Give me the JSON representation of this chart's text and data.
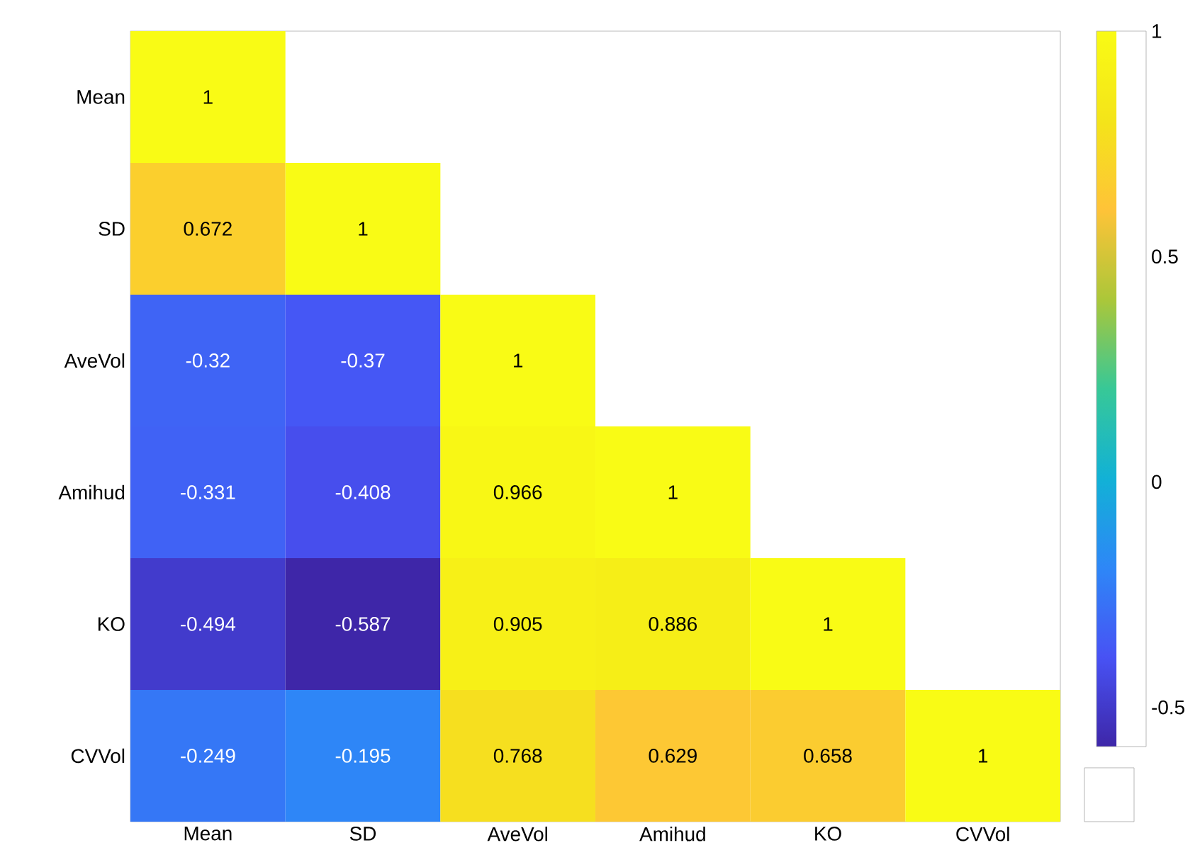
{
  "chart_data": {
    "type": "heatmap",
    "categories": [
      "Mean",
      "SD",
      "AveVol",
      "Amihud",
      "KO",
      "CVVol"
    ],
    "y_categories": [
      "Mean",
      "SD",
      "AveVol",
      "Amihud",
      "KO",
      "CVVol"
    ],
    "cells": [
      [
        1,
        null,
        null,
        null,
        null,
        null
      ],
      [
        0.672,
        1,
        null,
        null,
        null,
        null
      ],
      [
        -0.32,
        -0.37,
        1,
        null,
        null,
        null
      ],
      [
        -0.331,
        -0.408,
        0.966,
        1,
        null,
        null
      ],
      [
        -0.494,
        -0.587,
        0.905,
        0.886,
        1,
        null
      ],
      [
        -0.249,
        -0.195,
        0.768,
        0.629,
        0.658,
        1
      ]
    ],
    "clim": [
      -0.587,
      1
    ],
    "cticks": [
      -0.5,
      0,
      0.5,
      1
    ],
    "data_labels": true
  }
}
